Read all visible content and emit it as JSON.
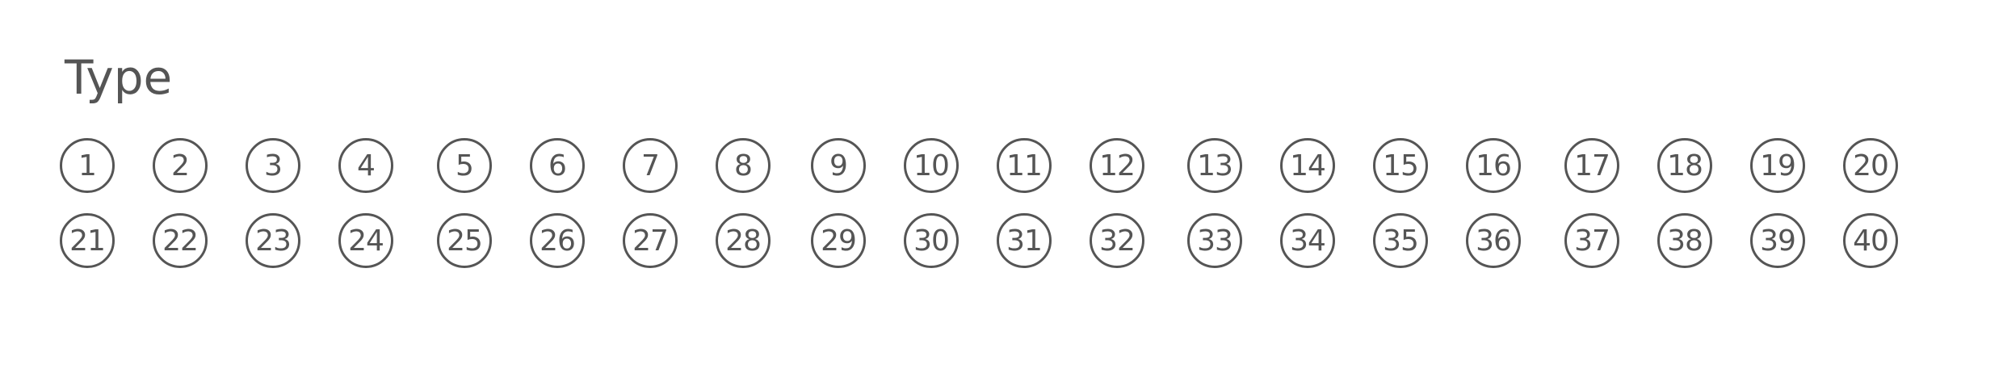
{
  "form": {
    "heading": "Type",
    "rows": [
      [
        "1",
        "2",
        "3",
        "4",
        "5",
        "6",
        "7",
        "8",
        "9",
        "10",
        "11",
        "12",
        "13",
        "14",
        "15",
        "16",
        "17",
        "18",
        "19",
        "20"
      ],
      [
        "21",
        "22",
        "23",
        "24",
        "25",
        "26",
        "27",
        "28",
        "29",
        "30",
        "31",
        "32",
        "33",
        "34",
        "35",
        "36",
        "37",
        "38",
        "39",
        "40"
      ]
    ]
  }
}
